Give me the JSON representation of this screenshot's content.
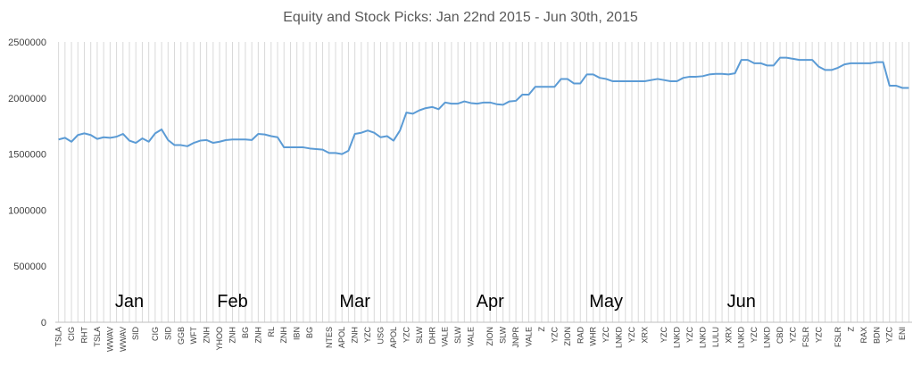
{
  "chart_data": {
    "type": "line",
    "title": "Equity and Stock Picks: Jan 22nd 2015 - Jun 30th, 2015",
    "xlabel": "",
    "ylabel": "",
    "ylim": [
      0,
      2500000
    ],
    "yticks": [
      0,
      500000,
      1000000,
      1500000,
      2000000,
      2500000
    ],
    "ytick_labels": [
      "0",
      "500000",
      "1000000",
      "1500000",
      "2000000",
      "2500000"
    ],
    "grid": "vertical",
    "legend": "none",
    "colors": {
      "line": "#5b9bd5",
      "grid": "#d9d9d9",
      "axis": "#bfbfbf"
    },
    "tick_labels": [
      "TSLA",
      "CIG",
      "RHT",
      "TSLA",
      "WWAV",
      "WWAV",
      "SID",
      "CIG",
      "SID",
      "GGB",
      "WFT",
      "ZNH",
      "YHOO",
      "ZNH",
      "BG",
      "ZNH",
      "RL",
      "ZNH",
      "IBN",
      "BG",
      "NTES",
      "APOL",
      "ZNH",
      "YZC",
      "USG",
      "APOL",
      "YZC",
      "SLW",
      "DHR",
      "VALE",
      "SLW",
      "VALE",
      "ZION",
      "SLW",
      "JNPR",
      "VALE",
      "Z",
      "YZC",
      "ZION",
      "RAD",
      "WHR",
      "YZC",
      "LNKD",
      "YZC",
      "XRX",
      "YZC",
      "LNKD",
      "YZC",
      "LNKD",
      "LULU",
      "XRX",
      "LNKD",
      "YZC",
      "LNKD",
      "CBD",
      "YZC",
      "FSLR",
      "YZC",
      "FSLR",
      "Z",
      "RAX",
      "BDN",
      "YZC",
      "ENI"
    ],
    "month_labels": [
      {
        "label": "Jan",
        "index": 11
      },
      {
        "label": "Feb",
        "index": 27
      },
      {
        "label": "Mar",
        "index": 46
      },
      {
        "label": "Apr",
        "index": 67
      },
      {
        "label": "May",
        "index": 85
      },
      {
        "label": "Jun",
        "index": 106
      }
    ],
    "series": [
      {
        "values": [
          1630000,
          1645000,
          1610000,
          1670000,
          1685000,
          1670000,
          1635000,
          1650000,
          1645000,
          1655000,
          1680000,
          1620000,
          1600000,
          1640000,
          1610000,
          1685000,
          1720000,
          1625000,
          1580000,
          1580000,
          1570000,
          1600000,
          1620000,
          1625000,
          1600000,
          1610000,
          1625000,
          1630000,
          1630000,
          1630000,
          1625000,
          1680000,
          1675000,
          1660000,
          1650000,
          1560000,
          1560000,
          1560000,
          1560000,
          1550000,
          1545000,
          1540000,
          1510000,
          1510000,
          1500000,
          1530000,
          1680000,
          1690000,
          1710000,
          1690000,
          1650000,
          1660000,
          1620000,
          1710000,
          1870000,
          1860000,
          1890000,
          1910000,
          1920000,
          1900000,
          1960000,
          1950000,
          1950000,
          1970000,
          1955000,
          1950000,
          1960000,
          1960000,
          1945000,
          1940000,
          1970000,
          1975000,
          2030000,
          2030000,
          2100000,
          2100000,
          2100000,
          2100000,
          2170000,
          2170000,
          2130000,
          2130000,
          2210000,
          2210000,
          2180000,
          2170000,
          2150000,
          2150000,
          2150000,
          2150000,
          2150000,
          2150000,
          2160000,
          2170000,
          2160000,
          2150000,
          2150000,
          2180000,
          2190000,
          2190000,
          2195000,
          2210000,
          2215000,
          2215000,
          2210000,
          2220000,
          2340000,
          2340000,
          2310000,
          2310000,
          2290000,
          2290000,
          2360000,
          2360000,
          2350000,
          2340000,
          2340000,
          2340000,
          2280000,
          2250000,
          2250000,
          2270000,
          2300000,
          2310000,
          2310000,
          2310000,
          2310000,
          2320000,
          2320000,
          2110000,
          2110000,
          2090000,
          2090000
        ]
      }
    ]
  }
}
